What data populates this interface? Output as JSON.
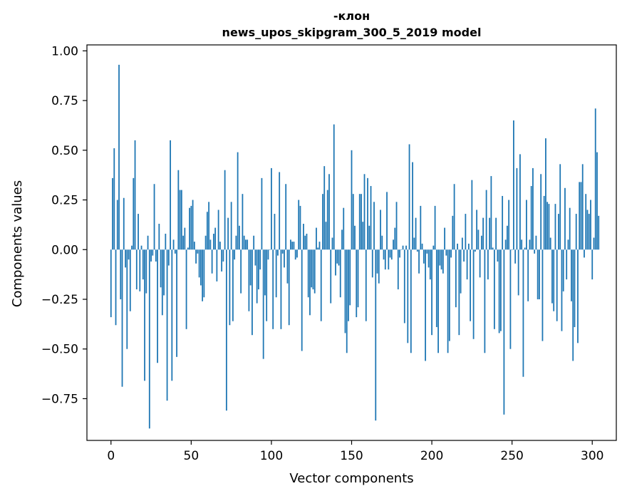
{
  "chart_data": {
    "type": "bar",
    "title_line1": "-клон",
    "title_line2": "news_upos_skipgram_300_5_2019 model",
    "xlabel": "Vector components",
    "ylabel": "Components values",
    "xlim": [
      -15,
      315
    ],
    "ylim": [
      -0.96,
      1.03
    ],
    "xticks": [
      0,
      50,
      100,
      150,
      200,
      250,
      300
    ],
    "xtick_labels": [
      "0",
      "50",
      "100",
      "150",
      "200",
      "250",
      "300"
    ],
    "yticks": [
      1.0,
      0.75,
      0.5,
      0.25,
      0.0,
      -0.25,
      -0.5,
      -0.75
    ],
    "ytick_labels": [
      "1.00",
      "0.75",
      "0.50",
      "0.25",
      "0.00",
      "−0.25",
      "−0.50",
      "−0.75"
    ],
    "bar_color": "#1f77b4",
    "grid": false,
    "values": [
      -0.34,
      0.36,
      0.51,
      -0.38,
      0.25,
      0.93,
      -0.25,
      -0.69,
      0.26,
      -0.09,
      -0.5,
      -0.05,
      -0.31,
      0.02,
      0.36,
      0.55,
      -0.2,
      0.18,
      -0.21,
      0.02,
      -0.15,
      -0.66,
      -0.22,
      0.07,
      -0.9,
      -0.06,
      -0.03,
      0.33,
      -0.06,
      -0.57,
      0.13,
      -0.19,
      -0.33,
      -0.23,
      0.08,
      -0.76,
      -0.08,
      0.55,
      -0.66,
      0.05,
      -0.02,
      -0.54,
      0.4,
      0.3,
      0.3,
      0.07,
      0.11,
      -0.4,
      0.01,
      0.21,
      0.22,
      0.25,
      0.04,
      -0.07,
      -0.02,
      -0.14,
      -0.18,
      -0.26,
      -0.24,
      0.07,
      0.19,
      0.24,
      0.05,
      -0.12,
      0.08,
      0.11,
      -0.16,
      0.2,
      0.04,
      -0.11,
      -0.06,
      0.4,
      -0.81,
      0.16,
      -0.38,
      0.24,
      -0.36,
      -0.05,
      0.07,
      0.49,
      0.12,
      -0.22,
      0.28,
      0.07,
      0.05,
      0.05,
      -0.31,
      -0.18,
      -0.43,
      0.07,
      -0.08,
      -0.27,
      -0.2,
      -0.1,
      0.36,
      -0.55,
      -0.23,
      -0.36,
      -0.05,
      0.0,
      0.41,
      -0.4,
      0.18,
      -0.24,
      -0.03,
      0.39,
      -0.4,
      -0.02,
      -0.09,
      0.33,
      -0.17,
      -0.38,
      0.05,
      0.04,
      0.04,
      -0.05,
      -0.04,
      0.25,
      0.22,
      -0.51,
      0.13,
      0.07,
      0.08,
      -0.24,
      -0.33,
      -0.19,
      -0.2,
      -0.22,
      0.11,
      0.01,
      0.04,
      -0.36,
      0.28,
      0.42,
      0.14,
      0.3,
      0.38,
      -0.27,
      0.06,
      0.63,
      -0.13,
      -0.07,
      -0.08,
      -0.24,
      0.1,
      0.21,
      -0.42,
      -0.52,
      -0.36,
      -0.28,
      0.5,
      0.28,
      0.12,
      -0.34,
      -0.29,
      0.28,
      0.28,
      0.14,
      0.38,
      -0.36,
      0.36,
      0.12,
      0.32,
      -0.14,
      0.24,
      -0.86,
      -0.12,
      -0.17,
      0.2,
      0.07,
      -0.05,
      -0.1,
      0.29,
      -0.1,
      -0.04,
      -0.05,
      0.05,
      0.11,
      0.24,
      -0.2,
      -0.04,
      0.0,
      0.02,
      -0.37,
      0.02,
      -0.47,
      0.53,
      -0.52,
      0.44,
      0.06,
      0.16,
      -0.01,
      -0.12,
      0.22,
      0.03,
      -0.07,
      -0.56,
      -0.02,
      -0.09,
      -0.15,
      -0.43,
      0.02,
      0.22,
      -0.39,
      -0.52,
      -0.08,
      -0.1,
      -0.12,
      0.11,
      -0.03,
      -0.52,
      -0.46,
      -0.04,
      0.17,
      0.33,
      -0.29,
      0.03,
      -0.43,
      -0.22,
      0.06,
      -0.06,
      0.18,
      -0.15,
      0.03,
      -0.36,
      0.35,
      -0.45,
      -0.01,
      0.2,
      0.1,
      -0.14,
      0.07,
      0.16,
      -0.52,
      0.3,
      -0.15,
      0.16,
      0.37,
      0.01,
      -0.4,
      0.16,
      -0.06,
      -0.42,
      -0.41,
      0.27,
      -0.83,
      0.05,
      0.12,
      0.25,
      -0.5,
      0.0,
      0.65,
      -0.07,
      0.41,
      -0.23,
      0.48,
      0.05,
      -0.64,
      0.01,
      0.25,
      -0.26,
      0.05,
      0.32,
      0.41,
      -0.02,
      0.07,
      -0.25,
      -0.25,
      0.38,
      -0.46,
      0.27,
      0.56,
      0.24,
      0.23,
      0.06,
      -0.27,
      -0.31,
      0.23,
      -0.36,
      0.18,
      0.43,
      -0.41,
      -0.21,
      0.31,
      -0.15,
      0.05,
      0.21,
      -0.26,
      -0.56,
      -0.39,
      0.18,
      -0.47,
      0.34,
      0.34,
      0.43,
      -0.04,
      0.28,
      0.2,
      0.18,
      0.25,
      -0.15,
      0.06,
      0.71,
      0.49,
      0.17
    ]
  }
}
